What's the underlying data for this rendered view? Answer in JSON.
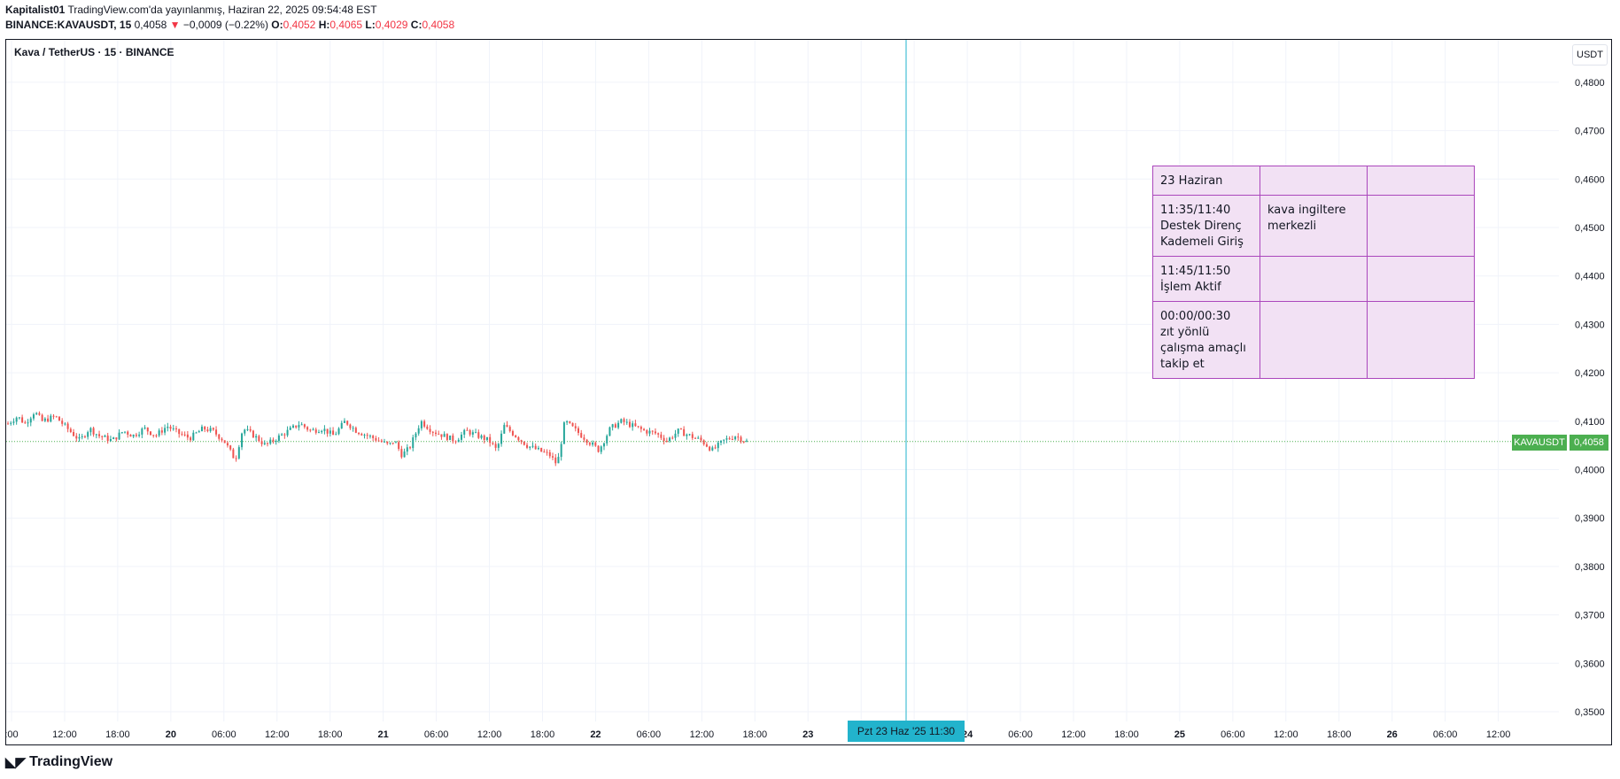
{
  "header": {
    "author": "Kapitalist01",
    "published": "TradingView.com'da yayınlanmış, Haziran 22, 2025 09:54:48 EST",
    "symbol": "BINANCE:KAVAUSDT, 15",
    "last": "0,4058",
    "change": "−0,0009 (−0.22%)",
    "o_label": "O:",
    "o": "0,4052",
    "h_label": "H:",
    "h": "0,4065",
    "l_label": "L:",
    "l": "0,4029",
    "c_label": "C:",
    "c": "0,4058"
  },
  "legend": "Kava / TetherUS · 15 · BINANCE",
  "unit": "USDT",
  "price_label": {
    "symbol": "KAVAUSDT",
    "value": "0,4058"
  },
  "crosshair_time": "Pzt 23 Haz '25     11:30",
  "brand": "TradingView",
  "colors": {
    "up": "#26a69a",
    "down": "#ef5350",
    "grid": "#f0f3fa",
    "crosshair": "#22b3cc",
    "last_line": "#4caf50",
    "note_fill": "#f2e1f4",
    "note_border": "#ab47bc"
  },
  "note_table": [
    [
      "23 Haziran",
      "",
      ""
    ],
    [
      "11:35/11:40\nDestek Direnç\nKademeli Giriş",
      "kava ingiltere\nmerkezli",
      ""
    ],
    [
      "11:45/11:50\nİşlem Aktif",
      "",
      ""
    ],
    [
      "00:00/00:30\nzıt yönlü\nçalışma amaçlı\ntakip et",
      "",
      ""
    ]
  ],
  "chart_data": {
    "type": "candlestick",
    "interval": "15",
    "ylim": [
      0.345,
      0.485
    ],
    "y_ticks": [
      "0,4800",
      "0,4700",
      "0,4600",
      "0,4500",
      "0,4400",
      "0,4300",
      "0,4200",
      "0,4100",
      "0,4000",
      "0,3900",
      "0,3800",
      "0,3700",
      "0,3600",
      "0,3500"
    ],
    "x_ticks": [
      ":00",
      "12:00",
      "18:00",
      "20",
      "06:00",
      "12:00",
      "18:00",
      "21",
      "06:00",
      "12:00",
      "18:00",
      "22",
      "06:00",
      "12:00",
      "18:00",
      "23",
      "0",
      "00",
      "24",
      "06:00",
      "12:00",
      "18:00",
      "25",
      "06:00",
      "12:00",
      "18:00",
      "26",
      "06:00",
      "12:00"
    ],
    "last_price": 0.4058,
    "series_path": [
      [
        0,
        0.4095
      ],
      [
        5,
        0.411
      ],
      [
        9,
        0.4095
      ],
      [
        14,
        0.412
      ],
      [
        18,
        0.41
      ],
      [
        25,
        0.411
      ],
      [
        30,
        0.409
      ],
      [
        38,
        0.406
      ],
      [
        43,
        0.4085
      ],
      [
        48,
        0.407
      ],
      [
        55,
        0.406
      ],
      [
        61,
        0.408
      ],
      [
        66,
        0.407
      ],
      [
        72,
        0.4085
      ],
      [
        78,
        0.407
      ],
      [
        84,
        0.409
      ],
      [
        90,
        0.4075
      ],
      [
        96,
        0.4065
      ],
      [
        103,
        0.4085
      ],
      [
        108,
        0.408
      ],
      [
        114,
        0.406
      ],
      [
        120,
        0.402
      ],
      [
        124,
        0.4085
      ],
      [
        130,
        0.407
      ],
      [
        136,
        0.405
      ],
      [
        142,
        0.4065
      ],
      [
        148,
        0.408
      ],
      [
        154,
        0.4095
      ],
      [
        160,
        0.408
      ],
      [
        166,
        0.4085
      ],
      [
        172,
        0.407
      ],
      [
        178,
        0.41
      ],
      [
        184,
        0.408
      ],
      [
        190,
        0.407
      ],
      [
        196,
        0.406
      ],
      [
        201,
        0.405
      ],
      [
        204,
        0.406
      ],
      [
        208,
        0.403
      ],
      [
        212,
        0.4045
      ],
      [
        218,
        0.41
      ],
      [
        224,
        0.408
      ],
      [
        230,
        0.407
      ],
      [
        236,
        0.406
      ],
      [
        242,
        0.408
      ],
      [
        248,
        0.407
      ],
      [
        254,
        0.406
      ],
      [
        258,
        0.404
      ],
      [
        262,
        0.409
      ],
      [
        268,
        0.407
      ],
      [
        274,
        0.405
      ],
      [
        280,
        0.404
      ],
      [
        286,
        0.403
      ],
      [
        290,
        0.401
      ],
      [
        294,
        0.41
      ],
      [
        300,
        0.408
      ],
      [
        306,
        0.406
      ],
      [
        312,
        0.404
      ],
      [
        318,
        0.4085
      ],
      [
        324,
        0.41
      ],
      [
        330,
        0.409
      ],
      [
        336,
        0.408
      ],
      [
        342,
        0.4075
      ],
      [
        348,
        0.406
      ],
      [
        354,
        0.408
      ],
      [
        360,
        0.407
      ],
      [
        366,
        0.406
      ],
      [
        372,
        0.404
      ],
      [
        378,
        0.406
      ],
      [
        384,
        0.407
      ],
      [
        390,
        0.4058
      ]
    ]
  }
}
